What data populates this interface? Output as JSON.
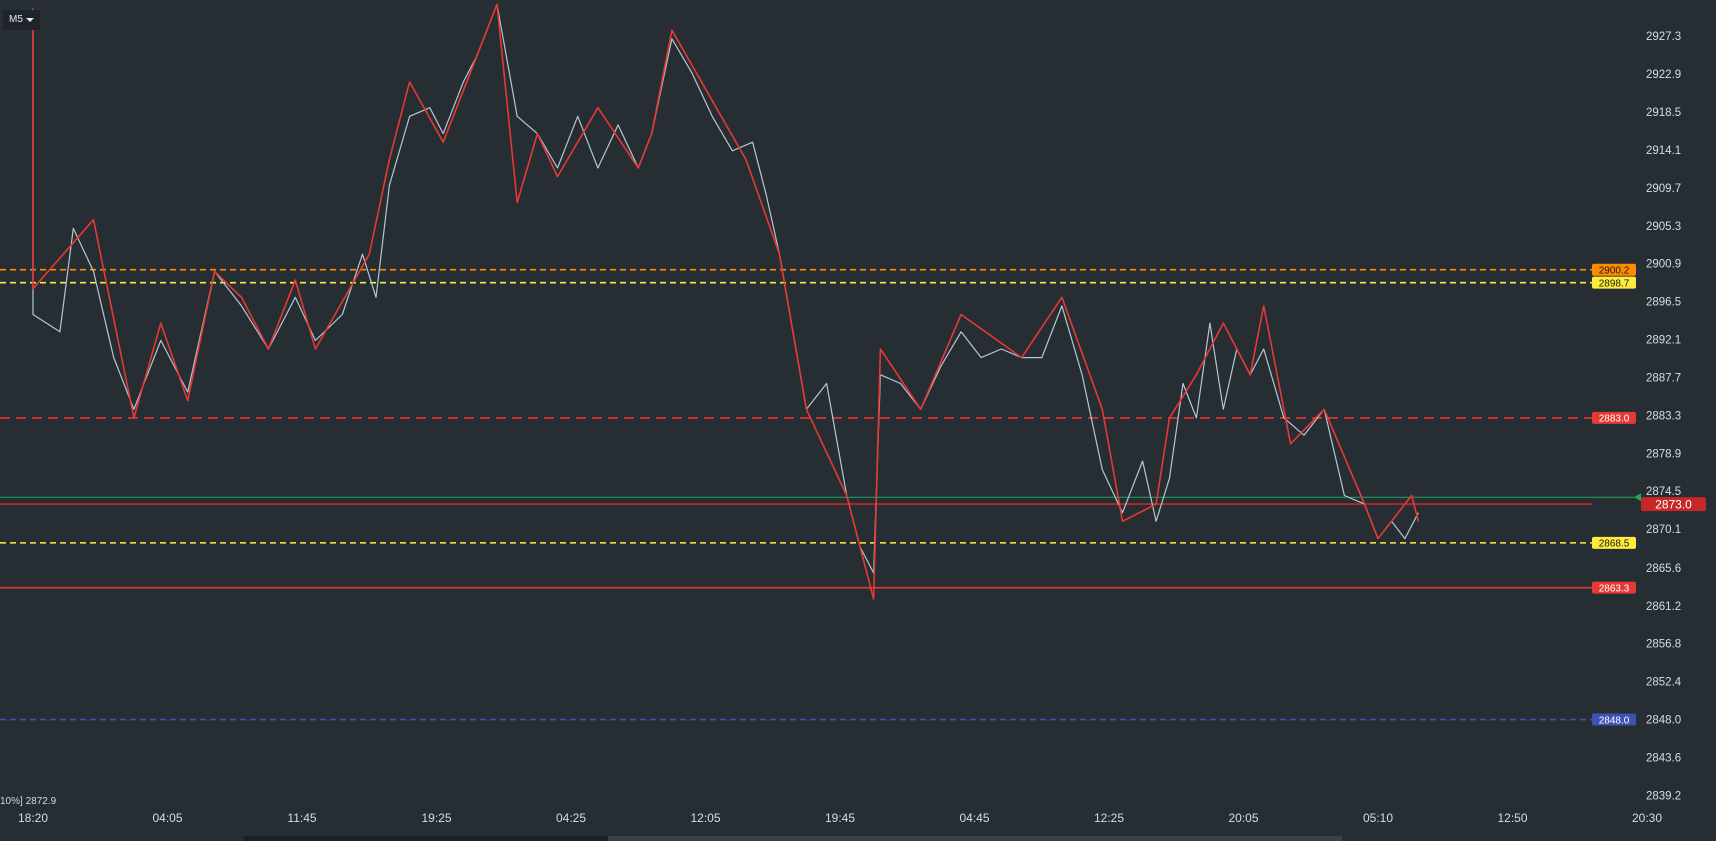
{
  "toolbar": {
    "timeframe": "M5"
  },
  "readout": "10%] 2872.9",
  "chart_data": {
    "type": "line",
    "title": "",
    "xlabel": "",
    "ylabel": "",
    "ylim": [
      2837.5,
      2931.5
    ],
    "y_ticks": [
      2927.3,
      2922.9,
      2918.5,
      2914.1,
      2909.7,
      2905.3,
      2900.9,
      2896.5,
      2892.1,
      2887.7,
      2883.3,
      2878.9,
      2874.5,
      2870.1,
      2865.6,
      2861.2,
      2856.8,
      2852.4,
      2848.0,
      2843.6,
      2839.2
    ],
    "x_ticks": [
      "18:20",
      "04:05",
      "11:45",
      "19:25",
      "04:25",
      "12:05",
      "19:45",
      "04:45",
      "12:25",
      "20:05",
      "05:10",
      "12:50",
      "20:30"
    ],
    "current_price": 2873.0,
    "grid": false,
    "levels": [
      {
        "price": 2900.2,
        "label": "2900.2",
        "color": "#ff8c00",
        "style": "dashed"
      },
      {
        "price": 2898.7,
        "label": "2898.7",
        "color": "#ffeb3b",
        "style": "dashed"
      },
      {
        "price": 2883.0,
        "label": "2883.0",
        "color": "#e53935",
        "style": "dashed"
      },
      {
        "price": 2873.0,
        "label": "2873.0",
        "color": "#c62828",
        "style": "solid"
      },
      {
        "price": 2868.5,
        "label": "2868.5",
        "color": "#ffeb3b",
        "style": "dashed"
      },
      {
        "price": 2863.3,
        "label": "2863.3",
        "color": "#e53935",
        "style": "solid"
      },
      {
        "price": 2848.0,
        "label": "2848.0",
        "color": "#3f51b5",
        "style": "dashed"
      }
    ],
    "bid_line": {
      "price": 2873.8,
      "color": "#26a65b"
    },
    "price_series": {
      "name": "",
      "color": "#b3c7d6",
      "points": [
        [
          0.0,
          2930.5
        ],
        [
          0.0,
          2895
        ],
        [
          0.2,
          2893
        ],
        [
          0.3,
          2905
        ],
        [
          0.45,
          2900
        ],
        [
          0.6,
          2890
        ],
        [
          0.75,
          2884
        ],
        [
          0.95,
          2892
        ],
        [
          1.15,
          2886
        ],
        [
          1.35,
          2900
        ],
        [
          1.55,
          2896
        ],
        [
          1.75,
          2891
        ],
        [
          1.95,
          2897
        ],
        [
          2.1,
          2892
        ],
        [
          2.3,
          2895
        ],
        [
          2.45,
          2902
        ],
        [
          2.55,
          2897
        ],
        [
          2.65,
          2910
        ],
        [
          2.8,
          2918
        ],
        [
          2.95,
          2919
        ],
        [
          3.05,
          2916
        ],
        [
          3.2,
          2922
        ],
        [
          3.3,
          2925
        ],
        [
          3.45,
          2931
        ],
        [
          3.6,
          2918
        ],
        [
          3.75,
          2916
        ],
        [
          3.9,
          2912
        ],
        [
          4.05,
          2918
        ],
        [
          4.2,
          2912
        ],
        [
          4.35,
          2917
        ],
        [
          4.5,
          2912
        ],
        [
          4.6,
          2916
        ],
        [
          4.75,
          2927
        ],
        [
          4.9,
          2923
        ],
        [
          5.05,
          2918
        ],
        [
          5.2,
          2914
        ],
        [
          5.35,
          2915
        ],
        [
          5.45,
          2909
        ],
        [
          5.55,
          2902
        ],
        [
          5.65,
          2893
        ],
        [
          5.75,
          2884
        ],
        [
          5.9,
          2887
        ],
        [
          6.05,
          2874
        ],
        [
          6.15,
          2868
        ],
        [
          6.25,
          2865
        ],
        [
          6.3,
          2888
        ],
        [
          6.45,
          2887
        ],
        [
          6.6,
          2884
        ],
        [
          6.75,
          2889
        ],
        [
          6.9,
          2893
        ],
        [
          7.05,
          2890
        ],
        [
          7.2,
          2891
        ],
        [
          7.35,
          2890
        ],
        [
          7.5,
          2890
        ],
        [
          7.65,
          2896
        ],
        [
          7.8,
          2888
        ],
        [
          7.95,
          2877
        ],
        [
          8.1,
          2872
        ],
        [
          8.25,
          2878
        ],
        [
          8.35,
          2871
        ],
        [
          8.45,
          2876
        ],
        [
          8.55,
          2887
        ],
        [
          8.65,
          2883
        ],
        [
          8.75,
          2894
        ],
        [
          8.85,
          2884
        ],
        [
          8.95,
          2891
        ],
        [
          9.05,
          2888
        ],
        [
          9.15,
          2891
        ],
        [
          9.3,
          2883
        ],
        [
          9.45,
          2881
        ],
        [
          9.6,
          2884
        ],
        [
          9.75,
          2874
        ],
        [
          9.9,
          2873
        ],
        [
          10.0,
          2869
        ],
        [
          10.1,
          2871
        ],
        [
          10.2,
          2869
        ],
        [
          10.3,
          2872
        ]
      ]
    },
    "zigzag_series": {
      "name": "",
      "color": "#e53935",
      "points": [
        [
          0.0,
          2930.5
        ],
        [
          0.0,
          2898
        ],
        [
          0.45,
          2906
        ],
        [
          0.75,
          2883
        ],
        [
          0.95,
          2894
        ],
        [
          1.15,
          2885
        ],
        [
          1.35,
          2900
        ],
        [
          1.55,
          2897
        ],
        [
          1.75,
          2891
        ],
        [
          1.95,
          2899
        ],
        [
          2.1,
          2891
        ],
        [
          2.5,
          2902
        ],
        [
          2.65,
          2913
        ],
        [
          2.8,
          2922
        ],
        [
          3.05,
          2915
        ],
        [
          3.45,
          2931
        ],
        [
          3.6,
          2908
        ],
        [
          3.75,
          2916
        ],
        [
          3.9,
          2911
        ],
        [
          4.2,
          2919
        ],
        [
          4.5,
          2912
        ],
        [
          4.6,
          2916
        ],
        [
          4.75,
          2928
        ],
        [
          5.3,
          2913
        ],
        [
          5.55,
          2902
        ],
        [
          5.75,
          2884
        ],
        [
          6.05,
          2874
        ],
        [
          6.25,
          2862
        ],
        [
          6.3,
          2891
        ],
        [
          6.6,
          2884
        ],
        [
          6.9,
          2895
        ],
        [
          7.35,
          2890
        ],
        [
          7.65,
          2897
        ],
        [
          7.95,
          2884
        ],
        [
          8.1,
          2871
        ],
        [
          8.35,
          2873
        ],
        [
          8.45,
          2883
        ],
        [
          8.65,
          2888
        ],
        [
          8.85,
          2894
        ],
        [
          9.05,
          2888
        ],
        [
          9.15,
          2896
        ],
        [
          9.35,
          2880
        ],
        [
          9.6,
          2884
        ],
        [
          9.9,
          2873
        ],
        [
          10.0,
          2869
        ],
        [
          10.25,
          2874
        ],
        [
          10.3,
          2871
        ]
      ]
    }
  }
}
